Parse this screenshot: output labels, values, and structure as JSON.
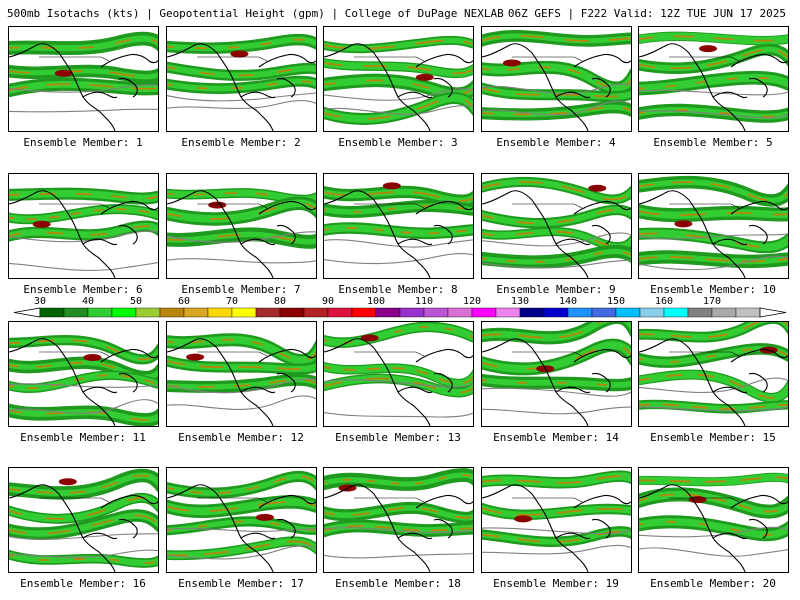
{
  "header": {
    "left": "500mb Isotachs (kts) | Geopotential Height (gpm) | College of DuPage NEXLAB",
    "right": "06Z GEFS | F222 Valid: 12Z TUE JUN 17 2025"
  },
  "members": [
    {
      "label": "Ensemble Member: 1"
    },
    {
      "label": "Ensemble Member: 2"
    },
    {
      "label": "Ensemble Member: 3"
    },
    {
      "label": "Ensemble Member: 4"
    },
    {
      "label": "Ensemble Member: 5"
    },
    {
      "label": "Ensemble Member: 6"
    },
    {
      "label": "Ensemble Member: 7"
    },
    {
      "label": "Ensemble Member: 8"
    },
    {
      "label": "Ensemble Member: 9"
    },
    {
      "label": "Ensemble Member: 10"
    },
    {
      "label": "Ensemble Member: 11"
    },
    {
      "label": "Ensemble Member: 12"
    },
    {
      "label": "Ensemble Member: 13"
    },
    {
      "label": "Ensemble Member: 14"
    },
    {
      "label": "Ensemble Member: 15"
    },
    {
      "label": "Ensemble Member: 16"
    },
    {
      "label": "Ensemble Member: 17"
    },
    {
      "label": "Ensemble Member: 18"
    },
    {
      "label": "Ensemble Member: 19"
    },
    {
      "label": "Ensemble Member: 20"
    }
  ],
  "colorbar": {
    "ticks": [
      "30",
      "40",
      "50",
      "60",
      "70",
      "80",
      "90",
      "100",
      "110",
      "120",
      "130",
      "140",
      "150",
      "160",
      "170"
    ],
    "colors": [
      "#006400",
      "#228b22",
      "#32cd32",
      "#00ff00",
      "#9acd32",
      "#b8860b",
      "#daa520",
      "#ffd700",
      "#ffff00",
      "#a52a2a",
      "#8b0000",
      "#b22222",
      "#dc143c",
      "#ff0000",
      "#8b008b",
      "#9932cc",
      "#ba55d3",
      "#da70d6",
      "#ff00ff",
      "#ee82ee",
      "#00008b",
      "#0000cd",
      "#1e90ff",
      "#4169e1",
      "#00bfff",
      "#87ceeb",
      "#00ffff",
      "#808080",
      "#a9a9a9",
      "#c0c0c0"
    ]
  }
}
